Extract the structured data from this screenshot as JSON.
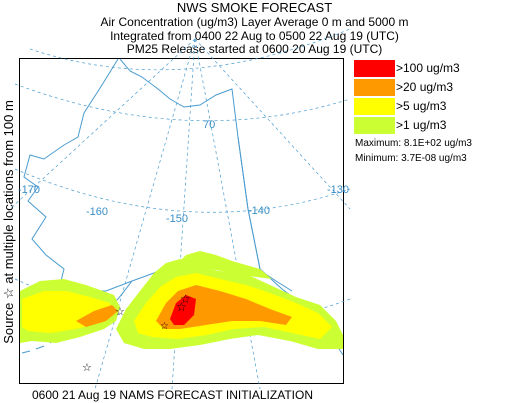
{
  "header": {
    "line1": "NWS SMOKE FORECAST",
    "line2": "Air Concentration (ug/m3) Layer Average    0 m and  5000 m",
    "line3": "Integrated from 0400 22 Aug to 0500 22 Aug 19 (UTC)",
    "line4": "PM25 Release started at 0600 20 Aug 19 (UTC)"
  },
  "side_label": {
    "star": "☆",
    "text": "Source ☆ at multiple locations    from    100 m"
  },
  "legend": {
    "items": [
      {
        "label": ">100 ug/m3",
        "color": "#ff0000"
      },
      {
        "label": ">20 ug/m3",
        "color": "#ff9900"
      },
      {
        "label": ">5 ug/m3",
        "color": "#ffff00"
      },
      {
        "label": ">1 ug/m3",
        "color": "#ccff33"
      }
    ],
    "maximum": "Maximum: 8.1E+02 ug/m3",
    "minimum": "Minimum: 3.7E-08 ug/m3"
  },
  "map": {
    "grid_labels": {
      "lon_170": "-170",
      "lon_160": "-160",
      "lon_150": "-150",
      "lon_140": "-140",
      "lon_130": "-130",
      "lat_70": "70"
    },
    "colors": {
      "grid": "#4a9ccf",
      "coast": "#4a9ccf",
      "concentration_100": "#ff0000",
      "concentration_20": "#ff9900",
      "concentration_5": "#ffff00",
      "concentration_1": "#ccff33"
    }
  },
  "footer": {
    "text": "0600 21 Aug 19 NAMS FORECAST INITIALIZATION"
  }
}
